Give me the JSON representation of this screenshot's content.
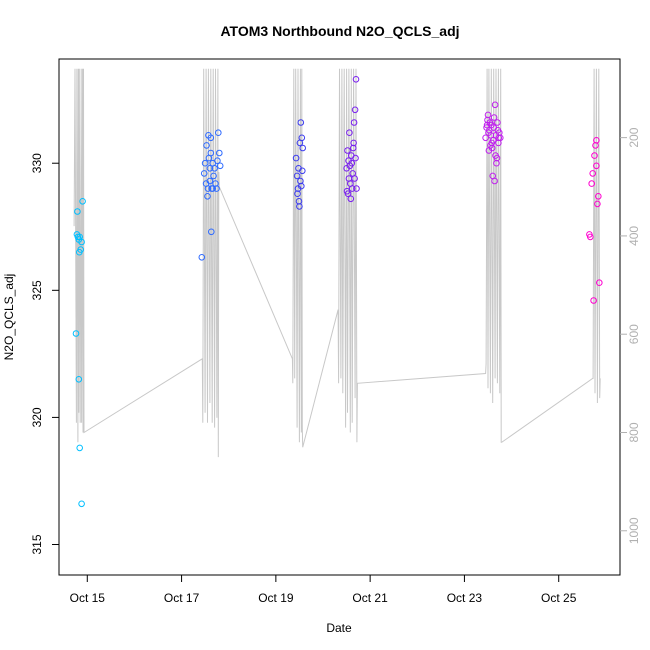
{
  "chart_data": {
    "type": "scatter",
    "title": "ATOM3 Northbound N2O_QCLS_adj",
    "xlabel": "Date",
    "ylabel": "N2O_QCLS_adj",
    "x_tick_labels": [
      "Oct 15",
      "Oct 17",
      "Oct 19",
      "Oct 21",
      "Oct 23",
      "Oct 25"
    ],
    "x_tick_days": [
      15,
      17,
      19,
      21,
      23,
      25
    ],
    "xlim": [
      14.4,
      26.3
    ],
    "ylim": [
      313.8,
      334.1
    ],
    "y_ticks": [
      315,
      320,
      325,
      330
    ],
    "right_axis": {
      "ticks": [
        200,
        400,
        600,
        800,
        1000
      ],
      "lim": [
        40,
        1090
      ],
      "reversed": true,
      "color": "#b0b0b0"
    },
    "grid": false,
    "legend": "none",
    "colors": {
      "line": "#c8c8c8",
      "frame": "#000000"
    },
    "point_colors": [
      {
        "day": 14.5,
        "color": "#00bfff"
      },
      {
        "day": 17.6,
        "color": "#2f6bff"
      },
      {
        "day": 19.5,
        "color": "#3c3cf0"
      },
      {
        "day": 20.6,
        "color": "#7a20f0"
      },
      {
        "day": 23.6,
        "color": "#c020ee"
      },
      {
        "day": 25.8,
        "color": "#ff00d0"
      }
    ],
    "series": [
      {
        "type": "scatter",
        "points": [
          [
            14.78,
            327.2
          ],
          [
            14.8,
            327.1
          ],
          [
            14.82,
            327.0
          ],
          [
            14.79,
            328.1
          ],
          [
            14.84,
            327.1
          ],
          [
            14.86,
            326.6
          ],
          [
            14.88,
            326.9
          ],
          [
            14.83,
            326.5
          ],
          [
            14.9,
            328.5
          ],
          [
            14.76,
            323.3
          ],
          [
            14.82,
            321.5
          ],
          [
            14.84,
            318.8
          ],
          [
            14.88,
            316.6
          ],
          [
            17.43,
            326.3
          ],
          [
            17.5,
            330.0
          ],
          [
            17.53,
            330.7
          ],
          [
            17.56,
            329.0
          ],
          [
            17.58,
            330.2
          ],
          [
            17.6,
            329.8
          ],
          [
            17.62,
            330.4
          ],
          [
            17.48,
            329.6
          ],
          [
            17.52,
            329.2
          ],
          [
            17.55,
            328.7
          ],
          [
            17.57,
            331.1
          ],
          [
            17.6,
            329.3
          ],
          [
            17.62,
            331.0
          ],
          [
            17.64,
            329.0
          ],
          [
            17.66,
            330.0
          ],
          [
            17.68,
            329.5
          ],
          [
            17.7,
            329.8
          ],
          [
            17.72,
            329.2
          ],
          [
            17.74,
            329.0
          ],
          [
            17.76,
            330.1
          ],
          [
            17.78,
            331.2
          ],
          [
            17.8,
            330.4
          ],
          [
            17.82,
            329.9
          ],
          [
            17.63,
            327.3
          ],
          [
            17.66,
            329.0
          ],
          [
            19.43,
            330.2
          ],
          [
            19.45,
            329.5
          ],
          [
            19.47,
            329.0
          ],
          [
            19.49,
            328.5
          ],
          [
            19.51,
            330.8
          ],
          [
            19.53,
            331.6
          ],
          [
            19.55,
            331.0
          ],
          [
            19.57,
            330.6
          ],
          [
            19.46,
            328.8
          ],
          [
            19.48,
            329.8
          ],
          [
            19.5,
            328.3
          ],
          [
            19.52,
            329.3
          ],
          [
            19.54,
            329.1
          ],
          [
            19.56,
            329.7
          ],
          [
            20.5,
            329.8
          ],
          [
            20.52,
            330.5
          ],
          [
            20.54,
            330.1
          ],
          [
            20.56,
            331.2
          ],
          [
            20.58,
            329.2
          ],
          [
            20.6,
            330.3
          ],
          [
            20.62,
            329.0
          ],
          [
            20.64,
            330.6
          ],
          [
            20.66,
            331.6
          ],
          [
            20.68,
            332.1
          ],
          [
            20.7,
            333.3
          ],
          [
            20.53,
            328.8
          ],
          [
            20.55,
            329.4
          ],
          [
            20.57,
            329.9
          ],
          [
            20.59,
            328.6
          ],
          [
            20.61,
            330.0
          ],
          [
            20.63,
            329.6
          ],
          [
            20.65,
            330.8
          ],
          [
            20.67,
            329.4
          ],
          [
            20.69,
            330.2
          ],
          [
            20.51,
            328.9
          ],
          [
            20.71,
            329.0
          ],
          [
            23.45,
            331.0
          ],
          [
            23.47,
            331.4
          ],
          [
            23.49,
            331.7
          ],
          [
            23.51,
            331.2
          ],
          [
            23.53,
            331.3
          ],
          [
            23.55,
            330.7
          ],
          [
            23.57,
            331.5
          ],
          [
            23.59,
            330.6
          ],
          [
            23.61,
            330.9
          ],
          [
            23.63,
            331.8
          ],
          [
            23.65,
            332.3
          ],
          [
            23.67,
            331.1
          ],
          [
            23.69,
            330.2
          ],
          [
            23.71,
            331.3
          ],
          [
            23.73,
            331.0
          ],
          [
            23.48,
            331.5
          ],
          [
            23.5,
            331.9
          ],
          [
            23.52,
            330.5
          ],
          [
            23.54,
            331.6
          ],
          [
            23.56,
            331.1
          ],
          [
            23.58,
            330.8
          ],
          [
            23.6,
            329.5
          ],
          [
            23.62,
            331.4
          ],
          [
            23.64,
            329.3
          ],
          [
            23.66,
            330.3
          ],
          [
            23.68,
            330.0
          ],
          [
            23.7,
            331.6
          ],
          [
            23.72,
            330.8
          ],
          [
            23.74,
            331.2
          ],
          [
            23.76,
            331.0
          ],
          [
            25.65,
            327.2
          ],
          [
            25.67,
            327.1
          ],
          [
            25.7,
            329.2
          ],
          [
            25.72,
            329.6
          ],
          [
            25.74,
            324.6
          ],
          [
            25.76,
            330.3
          ],
          [
            25.78,
            330.7
          ],
          [
            25.8,
            330.9
          ],
          [
            25.82,
            328.4
          ],
          [
            25.84,
            328.7
          ],
          [
            25.86,
            325.3
          ],
          [
            25.8,
            329.9
          ]
        ]
      },
      {
        "type": "line",
        "axis": "right",
        "x": [
          14.72,
          14.74,
          14.77,
          14.78,
          14.8,
          14.81,
          14.82,
          14.83,
          14.85,
          14.87,
          14.88,
          14.9,
          14.91,
          14.92,
          14.93,
          17.44,
          17.45,
          17.47,
          17.5,
          17.52,
          17.55,
          17.57,
          17.6,
          17.62,
          17.65,
          17.67,
          17.7,
          17.72,
          17.75,
          17.77,
          17.78,
          17.79,
          17.8,
          19.35,
          19.36,
          19.38,
          19.4,
          19.42,
          19.45,
          19.47,
          19.5,
          19.52,
          19.54,
          19.55,
          19.56,
          19.57,
          20.32,
          20.33,
          20.35,
          20.38,
          20.4,
          20.42,
          20.45,
          20.48,
          20.5,
          20.52,
          20.55,
          20.58,
          20.6,
          20.62,
          20.65,
          20.68,
          20.7,
          20.72,
          20.73,
          23.45,
          23.46,
          23.48,
          23.5,
          23.52,
          23.55,
          23.57,
          23.6,
          23.62,
          23.65,
          23.67,
          23.7,
          23.72,
          23.75,
          23.77,
          23.78,
          23.79,
          25.72,
          25.73,
          25.75,
          25.77,
          25.8,
          25.82,
          25.85,
          25.87,
          25.88
        ],
        "values": [
          380,
          60,
          780,
          60,
          820,
          60,
          760,
          60,
          780,
          60,
          780,
          60,
          800,
          60,
          800,
          650,
          780,
          60,
          760,
          60,
          780,
          60,
          740,
          60,
          780,
          60,
          790,
          60,
          770,
          60,
          850,
          270,
          300,
          650,
          700,
          60,
          690,
          60,
          790,
          60,
          820,
          60,
          800,
          60,
          790,
          830,
          550,
          700,
          60,
          690,
          60,
          720,
          60,
          790,
          60,
          760,
          60,
          800,
          60,
          780,
          60,
          730,
          60,
          820,
          700,
          680,
          660,
          60,
          710,
          60,
          720,
          60,
          740,
          60,
          690,
          60,
          700,
          60,
          720,
          60,
          820,
          820,
          690,
          690,
          60,
          720,
          60,
          740,
          60,
          730,
          690
        ]
      }
    ]
  }
}
